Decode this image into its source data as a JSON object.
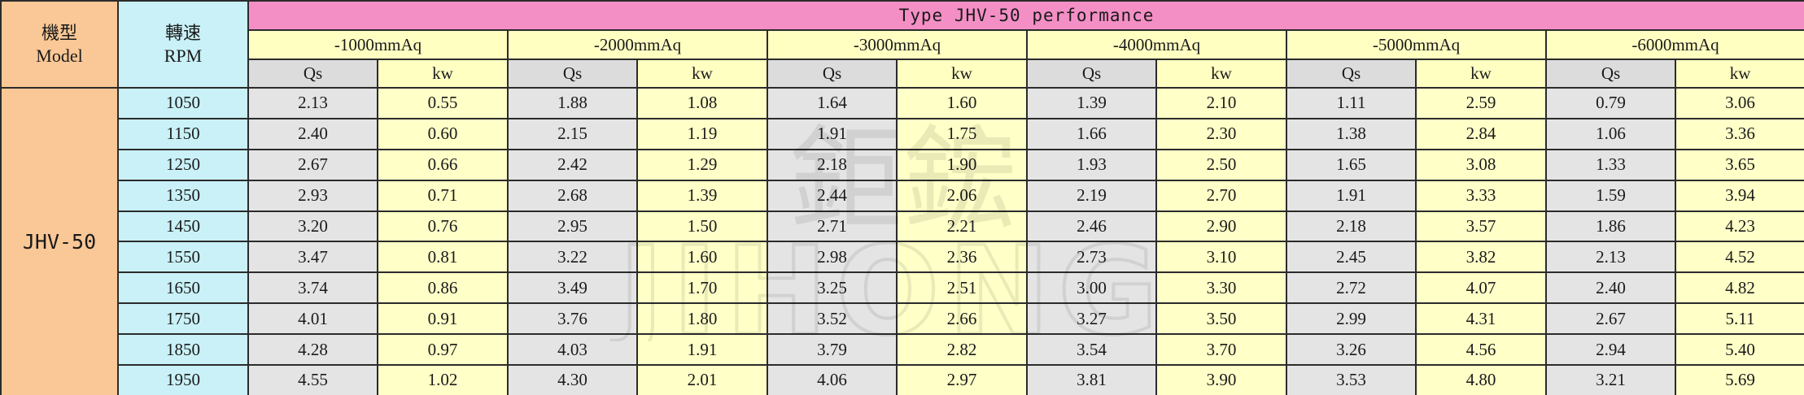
{
  "header": {
    "model_zh": "機型",
    "model_en": "Model",
    "rpm_zh": "轉速",
    "rpm_en": "RPM",
    "title": "Type JHV-50 performance",
    "pressures": [
      "-1000mmAq",
      "-2000mmAq",
      "-3000mmAq",
      "-4000mmAq",
      "-5000mmAq",
      "-6000mmAq"
    ],
    "sub_qs": "Qs",
    "sub_kw": "kw"
  },
  "model": "JHV-50",
  "rows": [
    {
      "rpm": "1050",
      "cells": [
        "2.13",
        "0.55",
        "1.88",
        "1.08",
        "1.64",
        "1.60",
        "1.39",
        "2.10",
        "1.11",
        "2.59",
        "0.79",
        "3.06"
      ]
    },
    {
      "rpm": "1150",
      "cells": [
        "2.40",
        "0.60",
        "2.15",
        "1.19",
        "1.91",
        "1.75",
        "1.66",
        "2.30",
        "1.38",
        "2.84",
        "1.06",
        "3.36"
      ]
    },
    {
      "rpm": "1250",
      "cells": [
        "2.67",
        "0.66",
        "2.42",
        "1.29",
        "2.18",
        "1.90",
        "1.93",
        "2.50",
        "1.65",
        "3.08",
        "1.33",
        "3.65"
      ]
    },
    {
      "rpm": "1350",
      "cells": [
        "2.93",
        "0.71",
        "2.68",
        "1.39",
        "2.44",
        "2.06",
        "2.19",
        "2.70",
        "1.91",
        "3.33",
        "1.59",
        "3.94"
      ]
    },
    {
      "rpm": "1450",
      "cells": [
        "3.20",
        "0.76",
        "2.95",
        "1.50",
        "2.71",
        "2.21",
        "2.46",
        "2.90",
        "2.18",
        "3.57",
        "1.86",
        "4.23"
      ]
    },
    {
      "rpm": "1550",
      "cells": [
        "3.47",
        "0.81",
        "3.22",
        "1.60",
        "2.98",
        "2.36",
        "2.73",
        "3.10",
        "2.45",
        "3.82",
        "2.13",
        "4.52"
      ]
    },
    {
      "rpm": "1650",
      "cells": [
        "3.74",
        "0.86",
        "3.49",
        "1.70",
        "3.25",
        "2.51",
        "3.00",
        "3.30",
        "2.72",
        "4.07",
        "2.40",
        "4.82"
      ]
    },
    {
      "rpm": "1750",
      "cells": [
        "4.01",
        "0.91",
        "3.76",
        "1.80",
        "3.52",
        "2.66",
        "3.27",
        "3.50",
        "2.99",
        "4.31",
        "2.67",
        "5.11"
      ]
    },
    {
      "rpm": "1850",
      "cells": [
        "4.28",
        "0.97",
        "4.03",
        "1.91",
        "3.79",
        "2.82",
        "3.54",
        "3.70",
        "3.26",
        "4.56",
        "2.94",
        "5.40"
      ]
    },
    {
      "rpm": "1950",
      "cells": [
        "4.55",
        "1.02",
        "4.30",
        "2.01",
        "4.06",
        "2.97",
        "3.81",
        "3.90",
        "3.53",
        "4.80",
        "3.21",
        "5.69"
      ]
    }
  ],
  "watermark": {
    "logo_zh": "鉅鋐",
    "logo_en": "JIHONG"
  },
  "colors": {
    "model_bg": "#fac896",
    "rpm_bg": "#c9f1f7",
    "title_bg": "#f48fc6",
    "pressure_bg": "#ffffc2",
    "qs_bg": "#e4e4e4",
    "kw_bg": "#ffffc8",
    "border": "#2b2b2b"
  }
}
